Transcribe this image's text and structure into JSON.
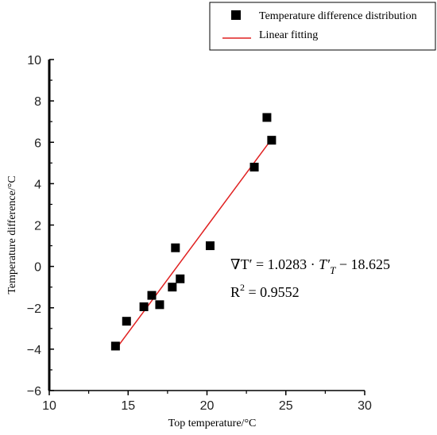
{
  "chart_data": {
    "type": "scatter",
    "xlabel": "Top temperature/°C",
    "ylabel": "Temperature difference/°C",
    "xlim": [
      10,
      30
    ],
    "ylim": [
      -6,
      10
    ],
    "xticks": [
      "10",
      "15",
      "20",
      "25",
      "30"
    ],
    "yticks": [
      "−6",
      "−4",
      "−2",
      "0",
      "2",
      "4",
      "6",
      "8",
      "10"
    ],
    "series": [
      {
        "name": "Temperature difference distribution",
        "type": "scatter",
        "color": "#000000",
        "marker": "square",
        "points": [
          {
            "x": 14.2,
            "y": -3.85
          },
          {
            "x": 14.9,
            "y": -2.65
          },
          {
            "x": 16.0,
            "y": -1.95
          },
          {
            "x": 16.5,
            "y": -1.4
          },
          {
            "x": 17.0,
            "y": -1.85
          },
          {
            "x": 17.8,
            "y": -1.0
          },
          {
            "x": 18.0,
            "y": 0.9
          },
          {
            "x": 18.3,
            "y": -0.6
          },
          {
            "x": 20.2,
            "y": 1.0
          },
          {
            "x": 23.0,
            "y": 4.8
          },
          {
            "x": 23.8,
            "y": 7.2
          },
          {
            "x": 24.1,
            "y": 6.1
          }
        ]
      },
      {
        "name": "Linear fitting",
        "type": "line",
        "color": "#e02020",
        "slope": 1.0283,
        "intercept": -18.625,
        "x_range": [
          14.2,
          24.1
        ]
      }
    ],
    "legend": {
      "position": "top-right"
    },
    "annotations": {
      "equation_prefix": "∇T′ = 1.0283 · ",
      "equation_var": "T′",
      "equation_sub": "T",
      "equation_suffix": "  − 18.625",
      "r2_label": "R",
      "r2_exp": "2",
      "r2_value": " = 0.9552"
    }
  }
}
